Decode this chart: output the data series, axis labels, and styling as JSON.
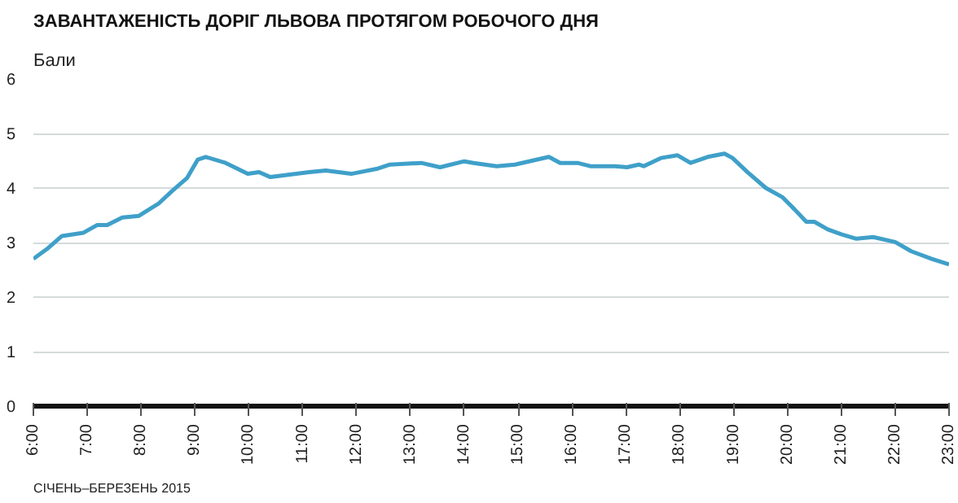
{
  "chart_data": {
    "type": "line",
    "title": "ЗАВАНТАЖЕНІСТЬ ДОРІГ ЛЬВОВА ПРОТЯГОМ РОБОЧОГО ДНЯ",
    "ylabel": "Бали",
    "annotations": [
      "СІЧЕНЬ–БЕРЕЗЕНЬ 2015"
    ],
    "x": [
      6.0,
      6.25,
      6.53,
      6.93,
      7.18,
      7.37,
      7.65,
      7.96,
      8.33,
      8.58,
      8.85,
      9.05,
      9.2,
      9.57,
      9.98,
      10.19,
      10.4,
      11.12,
      11.43,
      11.9,
      12.37,
      12.62,
      13.2,
      13.55,
      14.0,
      14.17,
      14.6,
      14.94,
      15.57,
      15.78,
      16.1,
      16.34,
      16.8,
      17.02,
      17.24,
      17.33,
      17.65,
      17.96,
      18.2,
      18.52,
      18.83,
      18.98,
      19.26,
      19.6,
      19.91,
      20.13,
      20.35,
      20.5,
      20.75,
      21.0,
      21.28,
      21.59,
      22.0,
      22.3,
      22.68,
      23.0
    ],
    "series": [
      {
        "color": "#3fa0c9",
        "values": [
          2.7,
          2.88,
          3.12,
          3.18,
          3.32,
          3.32,
          3.46,
          3.49,
          3.72,
          3.95,
          4.18,
          4.52,
          4.57,
          4.46,
          4.26,
          4.29,
          4.2,
          4.29,
          4.32,
          4.26,
          4.35,
          4.43,
          4.46,
          4.38,
          4.49,
          4.46,
          4.4,
          4.43,
          4.57,
          4.46,
          4.46,
          4.4,
          4.4,
          4.38,
          4.43,
          4.4,
          4.55,
          4.6,
          4.46,
          4.57,
          4.63,
          4.55,
          4.29,
          4.0,
          3.83,
          3.61,
          3.38,
          3.38,
          3.24,
          3.15,
          3.07,
          3.1,
          3.01,
          2.84,
          2.7,
          2.6
        ]
      }
    ],
    "xlim": [
      6,
      23
    ],
    "ylim": [
      0,
      6
    ],
    "xticks": [
      {
        "value": 6,
        "label": "6:00"
      },
      {
        "value": 7,
        "label": "7:00"
      },
      {
        "value": 8,
        "label": "8:00"
      },
      {
        "value": 9,
        "label": "9:00"
      },
      {
        "value": 10,
        "label": "10:00"
      },
      {
        "value": 11,
        "label": "11:00"
      },
      {
        "value": 12,
        "label": "12:00"
      },
      {
        "value": 13,
        "label": "13:00"
      },
      {
        "value": 14,
        "label": "14:00"
      },
      {
        "value": 15,
        "label": "15:00"
      },
      {
        "value": 16,
        "label": "16:00"
      },
      {
        "value": 17,
        "label": "17:00"
      },
      {
        "value": 18,
        "label": "18:00"
      },
      {
        "value": 19,
        "label": "19:00"
      },
      {
        "value": 20,
        "label": "20:00"
      },
      {
        "value": 21,
        "label": "21:00"
      },
      {
        "value": 22,
        "label": "22:00"
      },
      {
        "value": 23,
        "label": "23:00"
      }
    ],
    "yticks": [
      0,
      1,
      2,
      3,
      4,
      5,
      6
    ],
    "grid": "y",
    "marker": "none",
    "line_style": "solid"
  }
}
